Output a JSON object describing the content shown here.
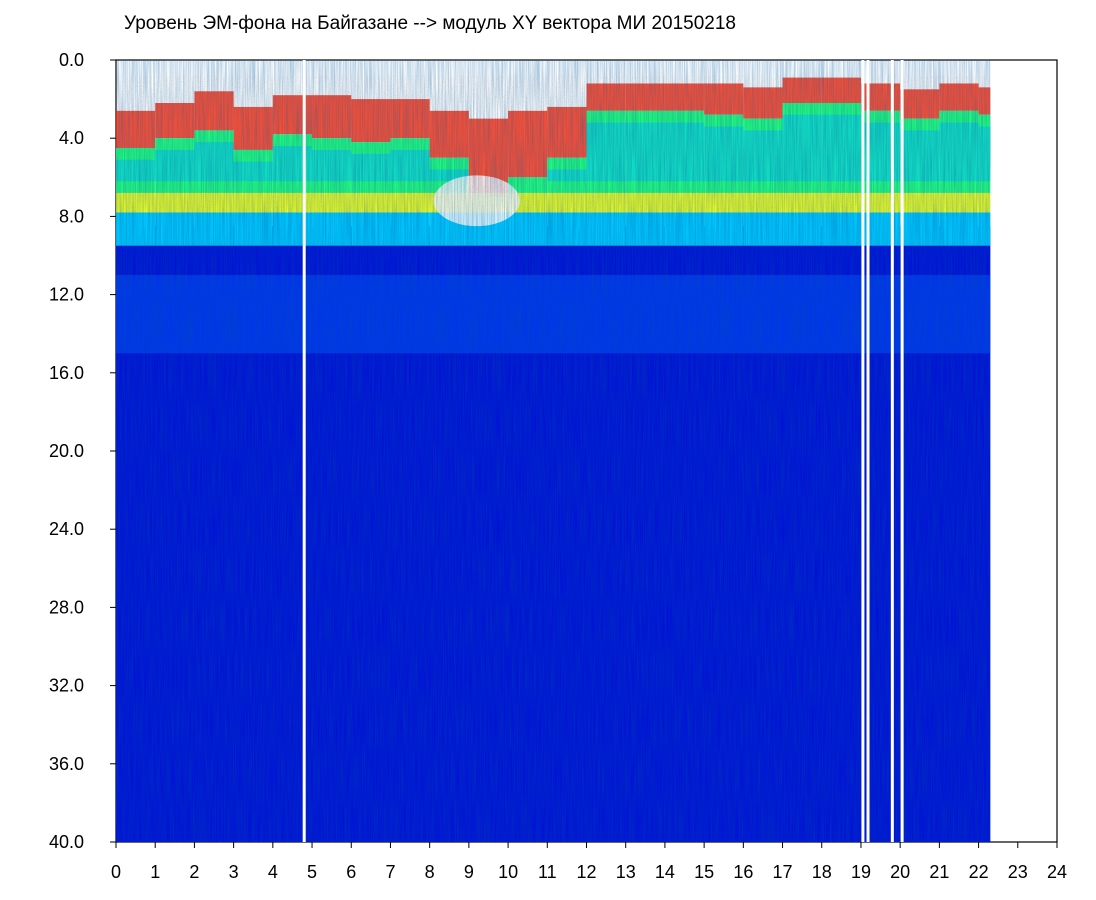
{
  "chart_data": {
    "type": "heatmap",
    "title": "Уровень ЭМ-фона на Байгазане  -->  модуль XY вектора МИ  20150218",
    "xlabel": "",
    "ylabel": "",
    "x_ticks": [
      "0",
      "1",
      "2",
      "3",
      "4",
      "5",
      "6",
      "7",
      "8",
      "9",
      "10",
      "11",
      "12",
      "13",
      "14",
      "15",
      "16",
      "17",
      "18",
      "19",
      "20",
      "21",
      "22",
      "23",
      "24"
    ],
    "y_ticks": [
      "0.0",
      "4.0",
      "8.0",
      "12.0",
      "16.0",
      "20.0",
      "24.0",
      "28.0",
      "32.0",
      "36.0",
      "40.0"
    ],
    "xlim": [
      0,
      24
    ],
    "ylim": [
      0,
      40
    ],
    "y_axis_inverted": true,
    "data_end_hour": 22.3,
    "colormap": [
      "#0010d8",
      "#0050ff",
      "#00c8ff",
      "#20ff80",
      "#e8ff00",
      "#ff2000"
    ],
    "gap_hours": [
      4.8,
      19.05,
      19.18,
      19.8,
      20.05
    ],
    "bands": [
      {
        "from": 0,
        "to": 2.5,
        "description_level": "sparse-red"
      },
      {
        "from": 2.5,
        "to": 7.5,
        "description_level": "green-cyan"
      },
      {
        "from": 7.5,
        "to": 9.5,
        "description_level": "cyan-blue"
      },
      {
        "from": 9.5,
        "to": 40,
        "description_level": "blue"
      }
    ],
    "hourly_top_level": [
      {
        "hour": 0,
        "red_top": 2.6,
        "green_top": 4.5
      },
      {
        "hour": 1,
        "red_top": 2.2,
        "green_top": 4.0
      },
      {
        "hour": 2,
        "red_top": 1.6,
        "green_top": 3.6
      },
      {
        "hour": 3,
        "red_top": 2.4,
        "green_top": 4.6
      },
      {
        "hour": 4,
        "red_top": 1.8,
        "green_top": 3.8
      },
      {
        "hour": 5,
        "red_top": 1.8,
        "green_top": 4.0
      },
      {
        "hour": 6,
        "red_top": 2.0,
        "green_top": 4.2
      },
      {
        "hour": 7,
        "red_top": 2.0,
        "green_top": 4.0
      },
      {
        "hour": 8,
        "red_top": 2.6,
        "green_top": 5.0
      },
      {
        "hour": 9,
        "red_top": 3.0,
        "green_top": 7.0
      },
      {
        "hour": 10,
        "red_top": 2.6,
        "green_top": 6.0
      },
      {
        "hour": 11,
        "red_top": 2.4,
        "green_top": 5.0
      },
      {
        "hour": 12,
        "red_top": 1.2,
        "green_top": 2.6
      },
      {
        "hour": 13,
        "red_top": 1.2,
        "green_top": 2.6
      },
      {
        "hour": 14,
        "red_top": 1.2,
        "green_top": 2.6
      },
      {
        "hour": 15,
        "red_top": 1.2,
        "green_top": 2.8
      },
      {
        "hour": 16,
        "red_top": 1.4,
        "green_top": 3.0
      },
      {
        "hour": 17,
        "red_top": 0.9,
        "green_top": 2.2
      },
      {
        "hour": 18,
        "red_top": 0.9,
        "green_top": 2.2
      },
      {
        "hour": 19,
        "red_top": 1.2,
        "green_top": 2.6
      },
      {
        "hour": 20,
        "red_top": 1.5,
        "green_top": 3.0
      },
      {
        "hour": 21,
        "red_top": 1.2,
        "green_top": 2.6
      },
      {
        "hour": 22,
        "red_top": 1.4,
        "green_top": 2.8
      }
    ]
  }
}
